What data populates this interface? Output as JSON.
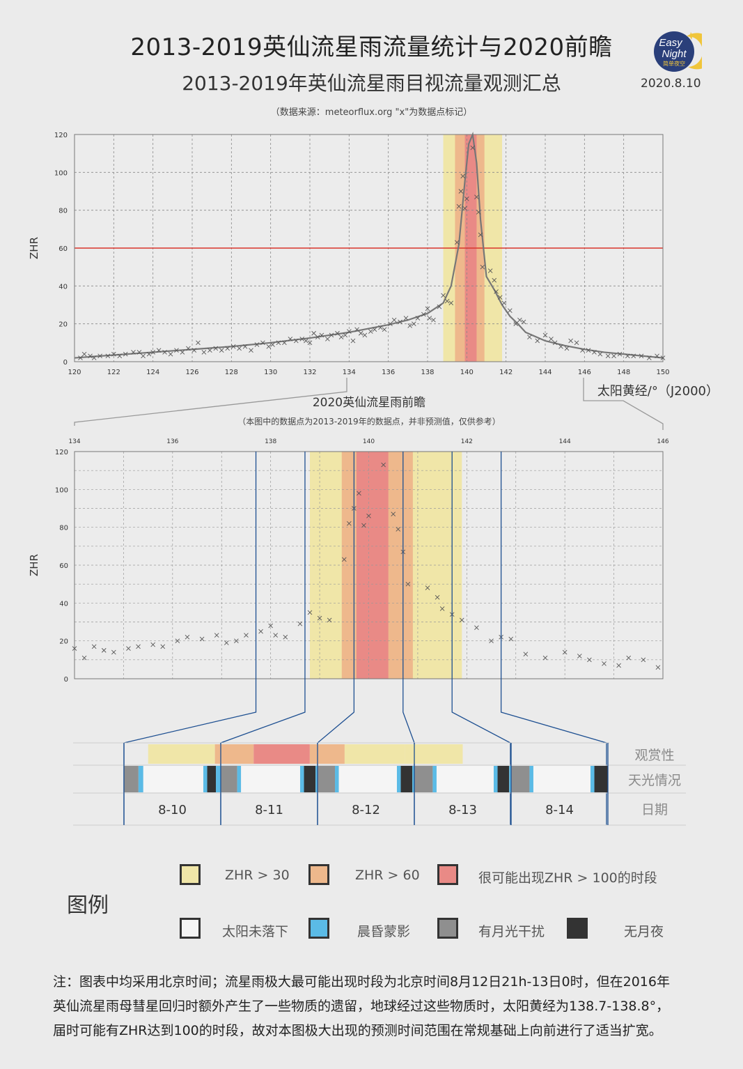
{
  "header": {
    "title": "2013-2019英仙流星雨流量统计与2020前瞻",
    "subtitle": "2013-2019年英仙流星雨目视流量观测汇总",
    "source_note": "（数据来源：meteorflux.org  \"x\"为数据点标记）",
    "date": "2020.8.10",
    "logo_line1": "Easy",
    "logo_line2": "Night",
    "logo_line3": "简单夜空"
  },
  "chart_data": [
    {
      "type": "scatter",
      "ylabel": "ZHR",
      "xlabel": "太阳黄经/°（J2000）",
      "xlim": [
        120,
        150
      ],
      "ylim": [
        0,
        120
      ],
      "x_ticks": [
        120,
        122,
        124,
        126,
        128,
        130,
        132,
        134,
        136,
        138,
        140,
        142,
        144,
        146,
        148,
        150
      ],
      "y_ticks": [
        0,
        20,
        40,
        60,
        80,
        100,
        120
      ],
      "grid": true,
      "reference_line": {
        "y": 60,
        "color": "#d9342b"
      },
      "bands": [
        {
          "from": 138.8,
          "to": 141.8,
          "color": "#f0e6a8"
        },
        {
          "from": 139.4,
          "to": 140.9,
          "color": "#eeb88c"
        },
        {
          "from": 139.9,
          "to": 140.5,
          "color": "#e98a86"
        }
      ],
      "series": [
        {
          "type": "scatter",
          "marker": "x",
          "points": [
            [
              120.3,
              2
            ],
            [
              120.5,
              4
            ],
            [
              120.8,
              3
            ],
            [
              121.0,
              2
            ],
            [
              121.3,
              3
            ],
            [
              121.7,
              3
            ],
            [
              122.0,
              4
            ],
            [
              122.3,
              3
            ],
            [
              122.6,
              4
            ],
            [
              123.0,
              5
            ],
            [
              123.3,
              5
            ],
            [
              123.5,
              3
            ],
            [
              123.8,
              4
            ],
            [
              124.0,
              5
            ],
            [
              124.3,
              6
            ],
            [
              124.6,
              5
            ],
            [
              124.9,
              4
            ],
            [
              125.2,
              6
            ],
            [
              125.5,
              5
            ],
            [
              125.8,
              7
            ],
            [
              126.1,
              6
            ],
            [
              126.3,
              10
            ],
            [
              126.6,
              5
            ],
            [
              126.9,
              6
            ],
            [
              127.2,
              7
            ],
            [
              127.5,
              6
            ],
            [
              127.8,
              7
            ],
            [
              128.1,
              8
            ],
            [
              128.4,
              7
            ],
            [
              128.7,
              8
            ],
            [
              129.0,
              6
            ],
            [
              129.3,
              9
            ],
            [
              129.6,
              10
            ],
            [
              129.9,
              8
            ],
            [
              130.1,
              9
            ],
            [
              130.4,
              10
            ],
            [
              130.7,
              10
            ],
            [
              131.0,
              12
            ],
            [
              131.3,
              11
            ],
            [
              131.6,
              12
            ],
            [
              131.8,
              11
            ],
            [
              132.0,
              10
            ],
            [
              132.2,
              15
            ],
            [
              132.4,
              13
            ],
            [
              132.6,
              14
            ],
            [
              132.9,
              12
            ],
            [
              133.1,
              14
            ],
            [
              133.4,
              15
            ],
            [
              133.6,
              13
            ],
            [
              133.8,
              14
            ],
            [
              134.0,
              16
            ],
            [
              134.2,
              11
            ],
            [
              134.4,
              17
            ],
            [
              134.6,
              15
            ],
            [
              134.8,
              14
            ],
            [
              135.1,
              16
            ],
            [
              135.3,
              17
            ],
            [
              135.6,
              18
            ],
            [
              135.8,
              17
            ],
            [
              136.1,
              20
            ],
            [
              136.3,
              22
            ],
            [
              136.6,
              21
            ],
            [
              136.9,
              23
            ],
            [
              137.1,
              19
            ],
            [
              137.3,
              20
            ],
            [
              137.5,
              23
            ],
            [
              137.8,
              25
            ],
            [
              138.0,
              28
            ],
            [
              138.1,
              23
            ],
            [
              138.3,
              22
            ],
            [
              138.6,
              29
            ],
            [
              138.8,
              35
            ],
            [
              139.0,
              32
            ],
            [
              139.2,
              31
            ],
            [
              139.5,
              63
            ],
            [
              139.6,
              82
            ],
            [
              139.7,
              90
            ],
            [
              139.8,
              98
            ],
            [
              139.9,
              81
            ],
            [
              140.0,
              86
            ],
            [
              140.3,
              113
            ],
            [
              140.5,
              87
            ],
            [
              140.6,
              79
            ],
            [
              140.7,
              67
            ],
            [
              140.8,
              50
            ],
            [
              141.2,
              48
            ],
            [
              141.4,
              43
            ],
            [
              141.5,
              37
            ],
            [
              141.7,
              34
            ],
            [
              141.9,
              31
            ],
            [
              142.2,
              27
            ],
            [
              142.5,
              20
            ],
            [
              142.7,
              22
            ],
            [
              142.9,
              21
            ],
            [
              143.2,
              13
            ],
            [
              143.6,
              11
            ],
            [
              144.0,
              14
            ],
            [
              144.3,
              12
            ],
            [
              144.5,
              10
            ],
            [
              144.8,
              8
            ],
            [
              145.1,
              7
            ],
            [
              145.3,
              11
            ],
            [
              145.6,
              10
            ],
            [
              145.9,
              6
            ],
            [
              146.2,
              6
            ],
            [
              146.5,
              5
            ],
            [
              146.8,
              4
            ],
            [
              147.2,
              3
            ],
            [
              147.5,
              3
            ],
            [
              147.8,
              4
            ],
            [
              148.2,
              3
            ],
            [
              148.5,
              3
            ],
            [
              148.9,
              3
            ],
            [
              149.3,
              2
            ],
            [
              149.7,
              3
            ],
            [
              150.0,
              2
            ]
          ]
        },
        {
          "type": "line",
          "points": [
            [
              120,
              2
            ],
            [
              122,
              3.5
            ],
            [
              124,
              5
            ],
            [
              126,
              6.5
            ],
            [
              128,
              8
            ],
            [
              130,
              10
            ],
            [
              132,
              12.5
            ],
            [
              134,
              15.5
            ],
            [
              136,
              19.5
            ],
            [
              137,
              22
            ],
            [
              138,
              25.5
            ],
            [
              138.8,
              31
            ],
            [
              139.2,
              40
            ],
            [
              139.6,
              62
            ],
            [
              139.9,
              95
            ],
            [
              140.1,
              115
            ],
            [
              140.3,
              120
            ],
            [
              140.5,
              105
            ],
            [
              140.7,
              75
            ],
            [
              141.0,
              45
            ],
            [
              141.4,
              38
            ],
            [
              141.8,
              30
            ],
            [
              142.2,
              24
            ],
            [
              142.6,
              20
            ],
            [
              143.0,
              15.5
            ],
            [
              144,
              11
            ],
            [
              145,
              8.5
            ],
            [
              146,
              6.5
            ],
            [
              147,
              5
            ],
            [
              148,
              4
            ],
            [
              149,
              3
            ],
            [
              150,
              2
            ]
          ]
        }
      ]
    },
    {
      "type": "scatter",
      "title": "2020英仙流星雨前瞻",
      "subtitle": "（本图中的数据点为2013-2019年的数据点，并非预测值，仅供参考）",
      "ylabel": "ZHR",
      "xlim": [
        134,
        146
      ],
      "ylim": [
        0,
        120
      ],
      "x_ticks": [
        134,
        136,
        138,
        140,
        142,
        144,
        146
      ],
      "y_ticks": [
        0,
        20,
        40,
        60,
        80,
        100,
        120
      ],
      "grid": true,
      "bands": [
        {
          "from": 138.8,
          "to": 141.9,
          "color": "#f0e6a8"
        },
        {
          "from": 139.45,
          "to": 140.9,
          "color": "#eeb88c"
        },
        {
          "from": 139.75,
          "to": 140.4,
          "color": "#e98a86"
        }
      ],
      "day_boundaries": [
        137.7,
        138.7,
        139.7,
        140.7,
        141.7,
        142.7
      ]
    }
  ],
  "timeline": {
    "rows": [
      "观赏性",
      "天光情况",
      "日期"
    ],
    "days": [
      "8-10",
      "8-11",
      "8-12",
      "8-13",
      "8-14"
    ],
    "viewing_segments": [
      {
        "start": 0.25,
        "end": 0.94,
        "level": "zhr30"
      },
      {
        "start": 0.94,
        "end": 1.34,
        "level": "zhr60"
      },
      {
        "start": 1.34,
        "end": 1.92,
        "level": "zhr100"
      },
      {
        "start": 1.92,
        "end": 2.28,
        "level": "zhr60"
      },
      {
        "start": 2.28,
        "end": 2.9,
        "level": "zhr30"
      },
      {
        "start": 2.9,
        "end": 3.5,
        "level": "zhr30"
      }
    ],
    "sky_segments": [
      {
        "day": 0,
        "parts": [
          [
            "moon",
            0.0,
            0.15
          ],
          [
            "twilight",
            0.15,
            0.2
          ],
          [
            "sun",
            0.2,
            0.82
          ],
          [
            "twilight",
            0.82,
            0.86
          ],
          [
            "dark",
            0.86,
            0.95
          ],
          [
            "twilight",
            0.95,
            1.0
          ]
        ]
      },
      {
        "day": 1,
        "parts": [
          [
            "moon",
            0.0,
            0.17
          ],
          [
            "twilight",
            0.17,
            0.21
          ],
          [
            "sun",
            0.21,
            0.82
          ],
          [
            "twilight",
            0.82,
            0.86
          ],
          [
            "dark",
            0.86,
            0.98
          ],
          [
            "twilight",
            0.98,
            1.0
          ]
        ]
      },
      {
        "day": 2,
        "parts": [
          [
            "moon",
            0.0,
            0.18
          ],
          [
            "twilight",
            0.18,
            0.22
          ],
          [
            "sun",
            0.22,
            0.82
          ],
          [
            "twilight",
            0.82,
            0.86
          ],
          [
            "dark",
            0.86,
            0.98
          ],
          [
            "twilight",
            0.98,
            1.0
          ]
        ]
      },
      {
        "day": 3,
        "parts": [
          [
            "moon",
            0.0,
            0.19
          ],
          [
            "twilight",
            0.19,
            0.23
          ],
          [
            "sun",
            0.23,
            0.82
          ],
          [
            "twilight",
            0.82,
            0.86
          ],
          [
            "dark",
            0.86,
            0.98
          ],
          [
            "twilight",
            0.98,
            1.0
          ]
        ]
      },
      {
        "day": 4,
        "parts": [
          [
            "moon",
            0.0,
            0.19
          ],
          [
            "twilight",
            0.19,
            0.23
          ],
          [
            "sun",
            0.23,
            0.82
          ],
          [
            "twilight",
            0.82,
            0.86
          ],
          [
            "dark",
            0.86,
            1.0
          ]
        ]
      }
    ]
  },
  "legend": {
    "title": "图例",
    "items": [
      {
        "label": "ZHR > 30",
        "color": "#f0e6a8"
      },
      {
        "label": "ZHR > 60",
        "color": "#eeb88c"
      },
      {
        "label": "很可能出现ZHR > 100的时段",
        "color": "#e98a86"
      },
      {
        "label": "太阳未落下",
        "color": "#f5f5f5"
      },
      {
        "label": "晨昏蒙影",
        "color": "#5bbbe6"
      },
      {
        "label": "有月光干扰",
        "color": "#8f8f8f"
      },
      {
        "label": "无月夜",
        "color": "#333333"
      }
    ]
  },
  "note": {
    "line1": "注：图表中均采用北京时间；流星雨极大最可能出现时段为北京时间8月12日21h-13日0时，但在2016年",
    "line2": "英仙流星雨母彗星回归时额外产生了一些物质的遗留，地球经过这些物质时，太阳黄经为138.7-138.8°，",
    "line3": "届时可能有ZHR达到100的时段，故对本图极大出现的预测时间范围在常规基础上向前进行了适当扩宽。"
  },
  "colors": {
    "zhr30": "#f0e6a8",
    "zhr60": "#eeb88c",
    "zhr100": "#e98a86",
    "sun": "#f5f5f5",
    "twilight": "#5bbbe6",
    "moon": "#8f8f8f",
    "dark": "#333333",
    "refline": "#d9342b",
    "fitline": "#777777",
    "dayline": "#1d4f91"
  }
}
